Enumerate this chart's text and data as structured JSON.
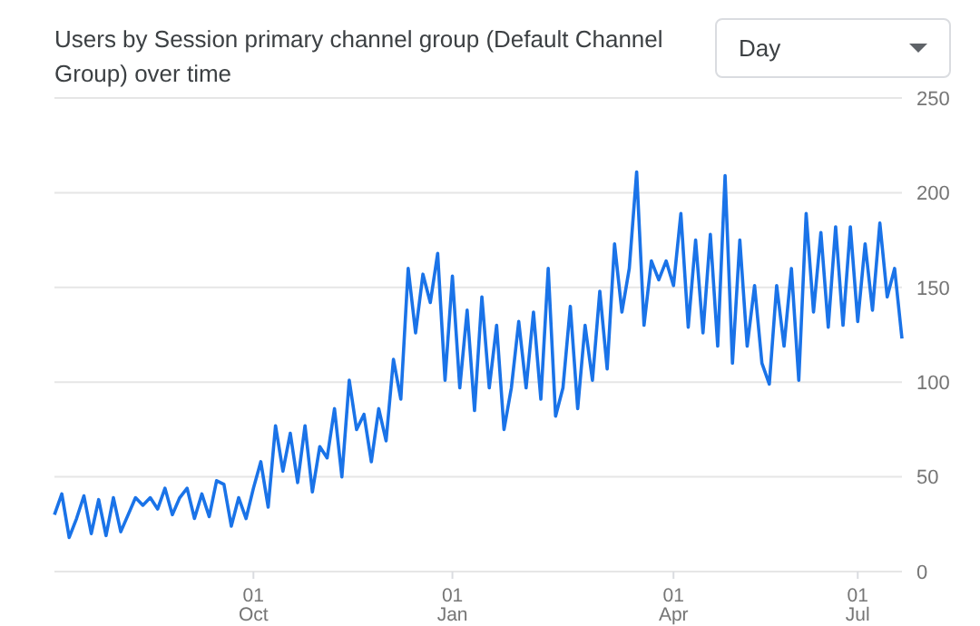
{
  "chart_data": {
    "type": "line",
    "title": "Users by Session primary channel group (Default Channel Group) over time",
    "annotations": [
      "Day"
    ],
    "categories": [
      null,
      null,
      null,
      null,
      null,
      null,
      null,
      null,
      null,
      null,
      null,
      null,
      null,
      null,
      null,
      null,
      null,
      null,
      null,
      null,
      null,
      null,
      null,
      null,
      null,
      null,
      null,
      "01\nOct",
      null,
      null,
      null,
      null,
      null,
      null,
      null,
      null,
      null,
      null,
      null,
      null,
      null,
      null,
      null,
      null,
      null,
      null,
      null,
      null,
      null,
      null,
      null,
      null,
      null,
      null,
      "01\nJan",
      null,
      null,
      null,
      null,
      null,
      null,
      null,
      null,
      null,
      null,
      null,
      null,
      null,
      null,
      null,
      null,
      null,
      null,
      null,
      null,
      null,
      null,
      null,
      null,
      null,
      null,
      null,
      null,
      null,
      "01\nApr",
      null,
      null,
      null,
      null,
      null,
      null,
      null,
      null,
      null,
      null,
      null,
      null,
      null,
      null,
      null,
      null,
      null,
      null,
      null,
      null,
      null,
      null,
      null,
      null,
      "01\nJul",
      null,
      null,
      null,
      null,
      null,
      null
    ],
    "series": [
      {
        "color": "#1a73e8",
        "values": [
          30,
          41,
          18,
          28,
          40,
          20,
          38,
          19,
          39,
          21,
          30,
          39,
          35,
          39,
          33,
          44,
          30,
          39,
          44,
          28,
          41,
          29,
          48,
          46,
          24,
          39,
          28,
          44,
          58,
          34,
          77,
          53,
          73,
          47,
          77,
          42,
          66,
          60,
          86,
          50,
          101,
          75,
          83,
          58,
          86,
          69,
          112,
          91,
          160,
          126,
          157,
          142,
          168,
          101,
          156,
          97,
          138,
          85,
          145,
          97,
          130,
          75,
          97,
          132,
          97,
          137,
          91,
          160,
          82,
          97,
          140,
          86,
          130,
          101,
          148,
          107,
          173,
          137,
          160,
          211,
          130,
          164,
          154,
          164,
          151,
          189,
          129,
          175,
          126,
          178,
          119,
          209,
          110,
          175,
          119,
          151,
          110,
          99,
          151,
          119,
          160,
          101,
          189,
          137,
          179,
          129,
          182,
          130,
          182,
          132,
          173,
          138,
          184,
          145,
          160,
          123
        ]
      }
    ],
    "ylim": [
      0,
      250
    ],
    "yticks": [
      0,
      50,
      100,
      150,
      200,
      250
    ],
    "grid": "y",
    "legend": false,
    "marker": "none",
    "line_style": "solid"
  }
}
